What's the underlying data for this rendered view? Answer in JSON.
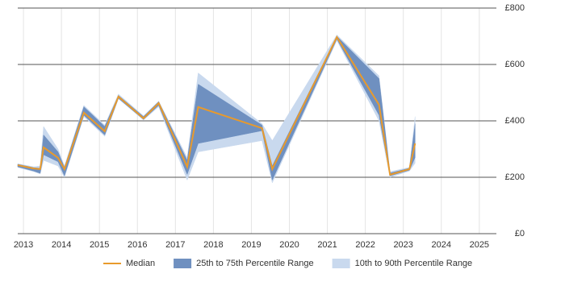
{
  "chart_data": {
    "type": "line",
    "x": [
      2012.85,
      2013.27,
      2013.44,
      2013.53,
      2013.91,
      2014.08,
      2014.59,
      2015.14,
      2015.5,
      2016.16,
      2016.56,
      2017.31,
      2017.6,
      2019.28,
      2019.55,
      2021.25,
      2022.36,
      2022.65,
      2023.16,
      2023.31
    ],
    "series": [
      {
        "name": "Median",
        "color": "#e89a2c",
        "values": [
          243,
          231,
          229,
          306,
          269,
          229,
          429,
          363,
          486,
          409,
          463,
          237,
          449,
          374,
          229,
          697,
          457,
          209,
          229,
          320
        ]
      },
      {
        "name": "25th to 75th Percentile Range",
        "color": "#6f90c0",
        "lower": [
          237,
          222,
          214,
          280,
          255,
          205,
          420,
          350,
          480,
          405,
          455,
          210,
          320,
          365,
          190,
          690,
          420,
          205,
          225,
          270
        ],
        "upper": [
          246,
          234,
          232,
          350,
          290,
          235,
          450,
          380,
          490,
          415,
          468,
          260,
          530,
          385,
          240,
          700,
          550,
          215,
          232,
          390
        ]
      },
      {
        "name": "10th to 90th Percentile Range",
        "color": "#c9d9ee",
        "lower": [
          235,
          220,
          212,
          260,
          240,
          200,
          415,
          345,
          478,
          403,
          450,
          190,
          290,
          330,
          180,
          685,
          400,
          200,
          222,
          250
        ],
        "upper": [
          248,
          237,
          240,
          380,
          300,
          240,
          455,
          385,
          495,
          418,
          470,
          270,
          570,
          390,
          330,
          705,
          560,
          220,
          235,
          415
        ]
      }
    ],
    "xlim": [
      2012.85,
      2025.45
    ],
    "xticks": [
      2013,
      2014,
      2015,
      2016,
      2017,
      2018,
      2019,
      2020,
      2021,
      2022,
      2023,
      2024,
      2025
    ],
    "ylim": [
      0,
      800
    ],
    "yticks": [
      {
        "value": 0,
        "label": "£0"
      },
      {
        "value": 200,
        "label": "£200"
      },
      {
        "value": 400,
        "label": "£400"
      },
      {
        "value": 600,
        "label": "£600"
      },
      {
        "value": 800,
        "label": "£800"
      }
    ],
    "grid": true,
    "legend": "bottom"
  }
}
